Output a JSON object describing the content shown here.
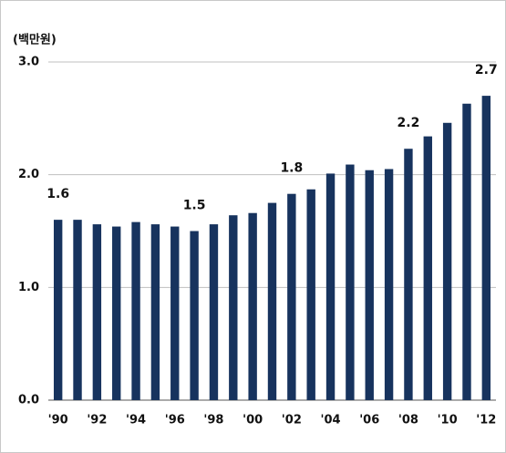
{
  "chart_data": {
    "type": "bar",
    "unit_label": "(백만원)",
    "categories": [
      "'90",
      null,
      "'92",
      null,
      "'94",
      null,
      "'96",
      null,
      "'98",
      null,
      "'00",
      null,
      "'02",
      null,
      "'04",
      null,
      "'06",
      null,
      "'08",
      null,
      "'10",
      null,
      "'12"
    ],
    "values": [
      1.6,
      1.6,
      1.56,
      1.54,
      1.58,
      1.56,
      1.54,
      1.5,
      1.56,
      1.64,
      1.66,
      1.75,
      1.83,
      1.87,
      2.01,
      2.09,
      2.04,
      2.05,
      2.23,
      2.34,
      2.46,
      2.63,
      2.7
    ],
    "value_labels": [
      "1.6",
      null,
      null,
      null,
      null,
      null,
      null,
      "1.5",
      null,
      null,
      null,
      null,
      "1.8",
      null,
      null,
      null,
      null,
      null,
      "2.2",
      null,
      null,
      null,
      "2.7"
    ],
    "color": "#17335e",
    "ylim": [
      0,
      3
    ],
    "yticks": [
      {
        "value": 0,
        "label": "0.0"
      },
      {
        "value": 1,
        "label": "1.0"
      },
      {
        "value": 2,
        "label": "2.0"
      },
      {
        "value": 3,
        "label": "3.0"
      }
    ],
    "grid": true
  }
}
